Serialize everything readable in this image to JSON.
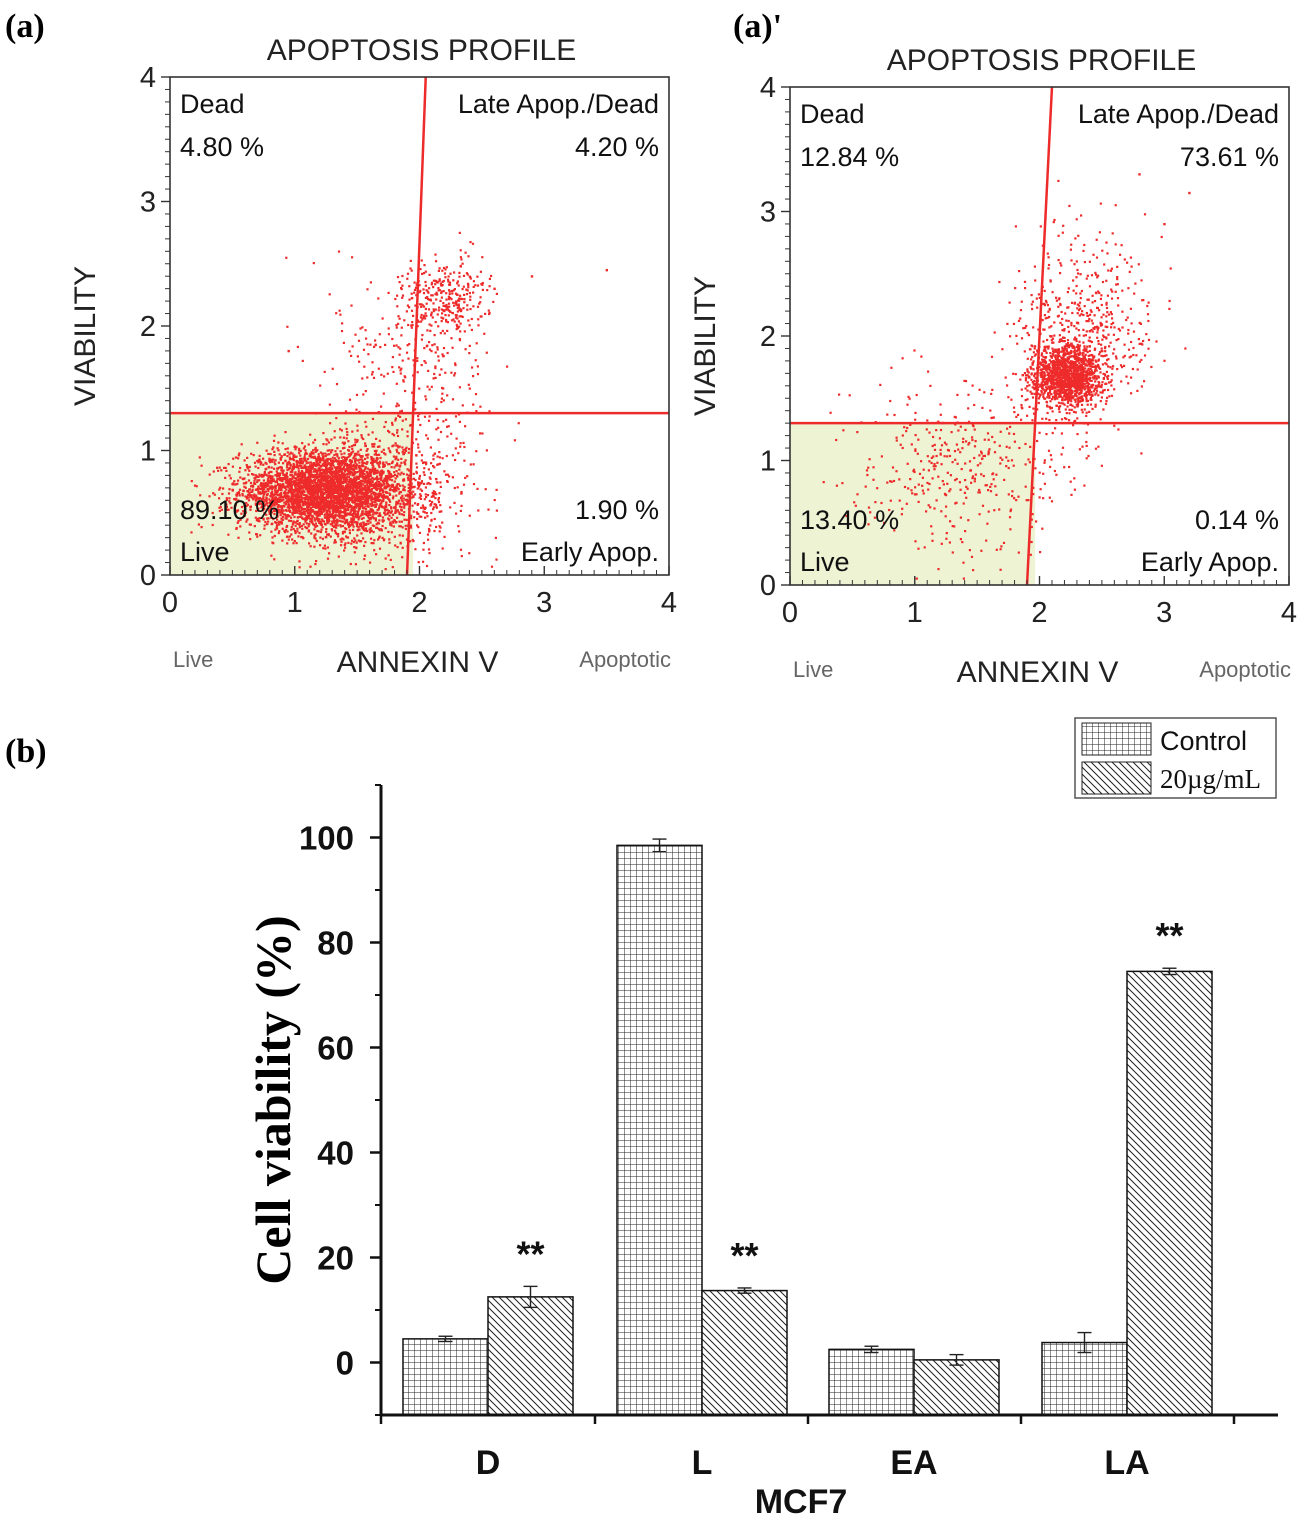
{
  "panel_labels": {
    "a": "(a)",
    "a_prime": "(a)'",
    "b": "(b)"
  },
  "chart_data": [
    {
      "type": "scatter",
      "panel": "(a)",
      "title": "APOPTOSIS PROFILE",
      "xlabel": "ANNEXIN V",
      "ylabel": "VIABILITY",
      "x_left_label": "Live",
      "x_right_label": "Apoptotic",
      "xlim": [
        0,
        4
      ],
      "ylim": [
        0,
        4
      ],
      "xticks": [
        "0",
        "1",
        "2",
        "3",
        "4"
      ],
      "yticks": [
        "0",
        "1",
        "2",
        "3",
        "4"
      ],
      "gate": {
        "x_top": 2.05,
        "x_bottom": 1.9,
        "y": 1.3
      },
      "quadrants": {
        "dead": {
          "label": "Dead",
          "value": "4.80 %"
        },
        "late": {
          "label": "Late Apop./Dead",
          "value": "4.20 %"
        },
        "live": {
          "label": "Live",
          "value": "89.10 %"
        },
        "early": {
          "label": "Early Apop.",
          "value": "1.90 %"
        }
      },
      "clusters": [
        {
          "cx": 1.2,
          "cy": 0.68,
          "sx": 0.32,
          "sy": 0.16,
          "n": 3200
        },
        {
          "cx": 1.55,
          "cy": 0.62,
          "sx": 0.3,
          "sy": 0.2,
          "n": 900
        },
        {
          "cx": 1.95,
          "cy": 1.0,
          "sx": 0.35,
          "sy": 0.45,
          "n": 350
        },
        {
          "cx": 2.2,
          "cy": 2.22,
          "sx": 0.17,
          "sy": 0.16,
          "n": 300
        },
        {
          "cx": 1.9,
          "cy": 1.9,
          "sx": 0.3,
          "sy": 0.3,
          "n": 150
        }
      ],
      "outliers": [
        [
          3.5,
          2.45
        ],
        [
          2.9,
          2.4
        ],
        [
          0.95,
          1.8
        ],
        [
          2.6,
          2.3
        ]
      ]
    },
    {
      "type": "scatter",
      "panel": "(a)'",
      "title": "APOPTOSIS PROFILE",
      "xlabel": "ANNEXIN V",
      "ylabel": "VIABILITY",
      "x_left_label": "Live",
      "x_right_label": "Apoptotic",
      "xlim": [
        0,
        4
      ],
      "ylim": [
        0,
        4
      ],
      "xticks": [
        "0",
        "1",
        "2",
        "3",
        "4"
      ],
      "yticks": [
        "0",
        "1",
        "2",
        "3",
        "4"
      ],
      "gate": {
        "x_top": 2.1,
        "x_bottom": 1.9,
        "y": 1.3
      },
      "quadrants": {
        "dead": {
          "label": "Dead",
          "value": "12.84 %"
        },
        "late": {
          "label": "Late Apop./Dead",
          "value": "73.61 %"
        },
        "live": {
          "label": "Live",
          "value": "13.40 %"
        },
        "early": {
          "label": "Early Apop.",
          "value": "0.14 %"
        }
      },
      "clusters": [
        {
          "cx": 2.22,
          "cy": 1.68,
          "sx": 0.14,
          "sy": 0.12,
          "n": 1400
        },
        {
          "cx": 2.35,
          "cy": 2.1,
          "sx": 0.28,
          "sy": 0.38,
          "n": 500
        },
        {
          "cx": 1.4,
          "cy": 0.95,
          "sx": 0.45,
          "sy": 0.35,
          "n": 420
        }
      ],
      "outliers": [
        [
          3.2,
          3.15
        ],
        [
          2.8,
          3.3
        ],
        [
          3.0,
          2.9
        ]
      ]
    },
    {
      "type": "bar",
      "panel": "(b)",
      "categories": [
        "D",
        "L",
        "EA",
        "LA"
      ],
      "series": [
        {
          "name": "Control",
          "values": [
            4.5,
            98.5,
            2.5,
            3.8
          ],
          "errors": [
            0.5,
            1.2,
            0.6,
            1.9
          ]
        },
        {
          "name": "20µg/mL",
          "values": [
            12.5,
            13.7,
            0.5,
            74.5
          ],
          "errors": [
            2.0,
            0.5,
            1.0,
            0.6
          ]
        }
      ],
      "significance": [
        "**",
        "**",
        "",
        "**"
      ],
      "xlabel": "MCF7",
      "ylabel": "Cell viability (%)",
      "ylim": [
        -10,
        110
      ],
      "yticks": [
        "0",
        "20",
        "40",
        "60",
        "80",
        "100"
      ],
      "legend": [
        "Control",
        "20µg/mL"
      ],
      "legend_position": "top-right"
    }
  ]
}
